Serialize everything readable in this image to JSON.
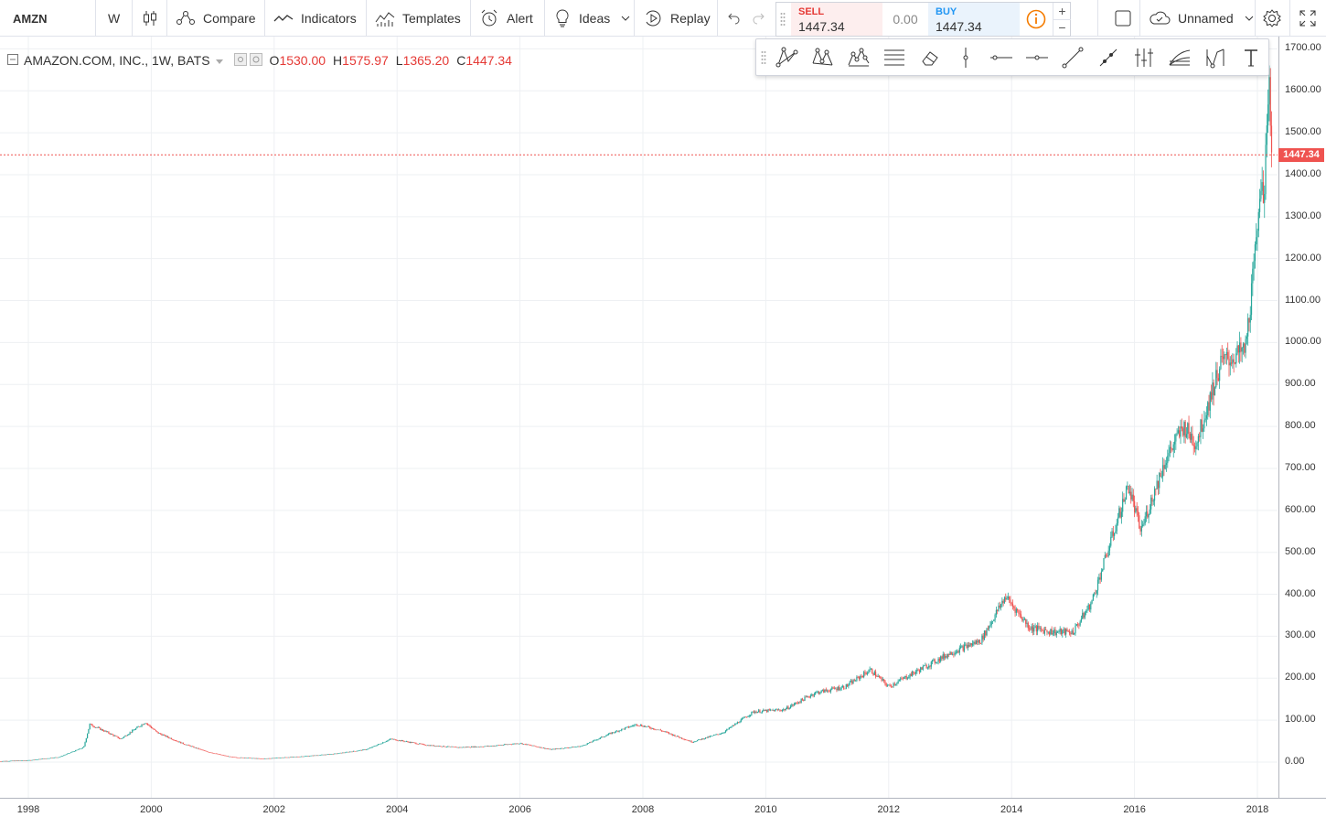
{
  "toolbar": {
    "symbol": "AMZN",
    "interval": "W",
    "compare_label": "Compare",
    "indicators_label": "Indicators",
    "templates_label": "Templates",
    "alert_label": "Alert",
    "ideas_label": "Ideas",
    "replay_label": "Replay",
    "layout_name": "Unnamed",
    "icons": [
      "candles-icon",
      "compare-icon",
      "indicators-icon",
      "templates-icon",
      "alert-icon",
      "ideas-icon",
      "replay-icon",
      "undo-icon",
      "redo-icon",
      "square-icon",
      "cloud-icon",
      "gear-icon",
      "fullscreen-icon"
    ]
  },
  "trade_panel": {
    "sell_label": "SELL",
    "sell_price": "1447.34",
    "spread": "0.00",
    "buy_label": "BUY",
    "buy_price": "1447.34",
    "sell_color": "#e53935",
    "buy_color": "#2196f3",
    "plus": "+",
    "minus": "−"
  },
  "drawing_tools": [
    "pitchfork-icon",
    "pattern-icon",
    "elliott-wave-icon",
    "parallel-lines-icon",
    "eraser-icon",
    "vertical-line-icon",
    "horizontal-line-icon",
    "horizontal-ray-icon",
    "trend-line-icon",
    "ray-icon",
    "fib-retracement-icon",
    "fib-fan-icon",
    "gann-icon",
    "text-icon"
  ],
  "legend": {
    "title": "AMAZON.COM, INC., 1W, BATS",
    "o_label": "O",
    "o_value": "1530.00",
    "h_label": "H",
    "h_value": "1575.97",
    "l_label": "L",
    "l_value": "1365.20",
    "c_label": "C",
    "c_value": "1447.34"
  },
  "chart_data": {
    "type": "candlestick",
    "symbol": "AMZN",
    "interval": "1W",
    "exchange": "BATS",
    "last_price": 1447.34,
    "last_price_label": "1447.34",
    "ylim": [
      -70,
      1720
    ],
    "y_ticks": [
      "1700.00",
      "1600.00",
      "1500.00",
      "1400.00",
      "1300.00",
      "1200.00",
      "1100.00",
      "1000.00",
      "900.00",
      "800.00",
      "700.00",
      "600.00",
      "500.00",
      "400.00",
      "300.00",
      "200.00",
      "100.00",
      "0.00"
    ],
    "x_ticks": [
      "1998",
      "2000",
      "2002",
      "2004",
      "2006",
      "2008",
      "2010",
      "2012",
      "2014",
      "2016",
      "2018"
    ],
    "x_tick_years": [
      1998,
      2000,
      2002,
      2004,
      2006,
      2008,
      2010,
      2012,
      2014,
      2016,
      2018
    ],
    "up_color": "#26a69a",
    "down_color": "#ef5350",
    "price_line_color": "#ef5350",
    "grid": true,
    "approx_close_by_time": [
      [
        1997.5,
        2
      ],
      [
        1998.0,
        4
      ],
      [
        1998.5,
        12
      ],
      [
        1998.9,
        35
      ],
      [
        1999.0,
        90
      ],
      [
        1999.3,
        70
      ],
      [
        1999.5,
        55
      ],
      [
        1999.9,
        95
      ],
      [
        2000.1,
        70
      ],
      [
        2000.5,
        45
      ],
      [
        2000.9,
        25
      ],
      [
        2001.3,
        12
      ],
      [
        2001.8,
        8
      ],
      [
        2002.5,
        14
      ],
      [
        2003.0,
        20
      ],
      [
        2003.5,
        30
      ],
      [
        2003.9,
        55
      ],
      [
        2004.5,
        40
      ],
      [
        2005.0,
        35
      ],
      [
        2005.5,
        38
      ],
      [
        2006.0,
        45
      ],
      [
        2006.5,
        30
      ],
      [
        2007.0,
        38
      ],
      [
        2007.5,
        70
      ],
      [
        2007.9,
        90
      ],
      [
        2008.3,
        75
      ],
      [
        2008.8,
        48
      ],
      [
        2009.3,
        70
      ],
      [
        2009.8,
        120
      ],
      [
        2010.3,
        125
      ],
      [
        2010.8,
        165
      ],
      [
        2011.3,
        180
      ],
      [
        2011.7,
        220
      ],
      [
        2012.0,
        180
      ],
      [
        2012.5,
        220
      ],
      [
        2013.0,
        260
      ],
      [
        2013.5,
        290
      ],
      [
        2013.9,
        395
      ],
      [
        2014.3,
        320
      ],
      [
        2014.7,
        310
      ],
      [
        2015.0,
        310
      ],
      [
        2015.3,
        380
      ],
      [
        2015.6,
        520
      ],
      [
        2015.9,
        660
      ],
      [
        2016.1,
        550
      ],
      [
        2016.5,
        720
      ],
      [
        2016.8,
        800
      ],
      [
        2017.0,
        760
      ],
      [
        2017.4,
        950
      ],
      [
        2017.8,
        980
      ],
      [
        2017.95,
        1180
      ],
      [
        2018.05,
        1400
      ],
      [
        2018.1,
        1300
      ],
      [
        2018.15,
        1550
      ],
      [
        2018.2,
        1600
      ],
      [
        2018.24,
        1447.34
      ]
    ]
  }
}
